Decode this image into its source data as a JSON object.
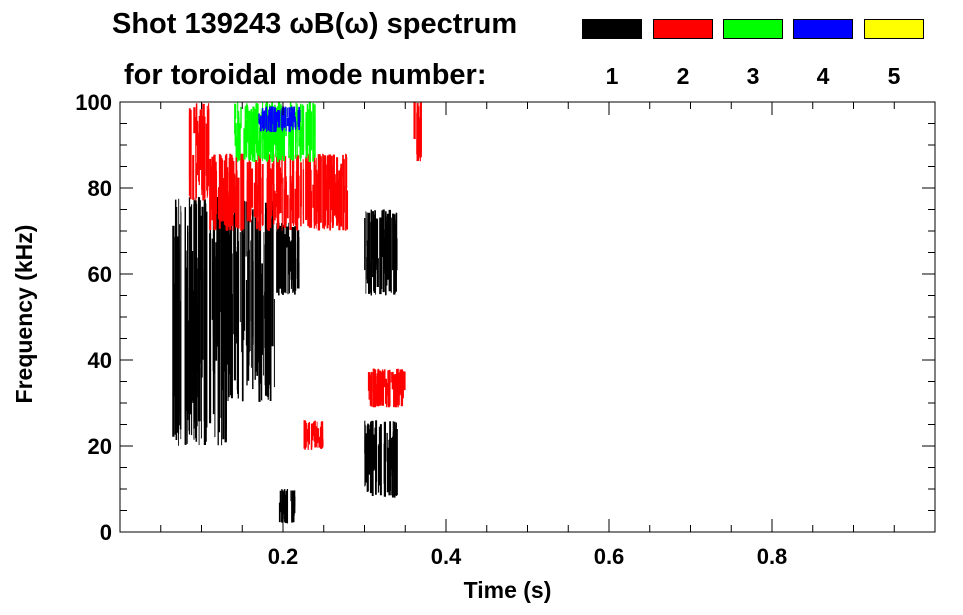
{
  "title": {
    "line1": "Shot 139243 ωB(ω) spectrum",
    "line2": "for toroidal mode number:"
  },
  "legend": [
    {
      "label": "1",
      "color": "#000000"
    },
    {
      "label": "2",
      "color": "#ff0000"
    },
    {
      "label": "3",
      "color": "#00ff00"
    },
    {
      "label": "4",
      "color": "#0000ff"
    },
    {
      "label": "5",
      "color": "#ffff00"
    }
  ],
  "chart_data": {
    "type": "heatmap",
    "xlabel": "Time (s)",
    "ylabel": "Frequency (kHz)",
    "xlim": [
      0.0,
      1.0
    ],
    "ylim": [
      0,
      100
    ],
    "xticks": [
      0.2,
      0.4,
      0.6,
      0.8
    ],
    "xtick_labels": [
      "0.2",
      "0.4",
      "0.6",
      "0.8"
    ],
    "yticks": [
      0,
      20,
      40,
      60,
      80,
      100
    ],
    "ytick_labels": [
      "0",
      "20",
      "40",
      "60",
      "80",
      "100"
    ],
    "grid": false,
    "legend_position": "top-right",
    "series": [
      {
        "name": "1",
        "color": "#000000",
        "regions": [
          {
            "t": [
              0.065,
              0.13
            ],
            "f": [
              20,
              78
            ]
          },
          {
            "t": [
              0.13,
              0.19
            ],
            "f": [
              30,
              78
            ]
          },
          {
            "t": [
              0.19,
              0.22
            ],
            "f": [
              55,
              72
            ]
          },
          {
            "t": [
              0.195,
              0.215
            ],
            "f": [
              2,
              10
            ]
          },
          {
            "t": [
              0.3,
              0.34
            ],
            "f": [
              55,
              75
            ]
          },
          {
            "t": [
              0.3,
              0.34
            ],
            "f": [
              8,
              26
            ]
          }
        ]
      },
      {
        "name": "2",
        "color": "#ff0000",
        "regions": [
          {
            "t": [
              0.085,
              0.11
            ],
            "f": [
              77,
              100
            ]
          },
          {
            "t": [
              0.11,
              0.28
            ],
            "f": [
              70,
              88
            ]
          },
          {
            "t": [
              0.225,
              0.25
            ],
            "f": [
              19,
              26
            ]
          },
          {
            "t": [
              0.305,
              0.35
            ],
            "f": [
              29,
              38
            ]
          },
          {
            "t": [
              0.36,
              0.37
            ],
            "f": [
              86,
              100
            ]
          }
        ]
      },
      {
        "name": "3",
        "color": "#00ff00",
        "regions": [
          {
            "t": [
              0.14,
              0.24
            ],
            "f": [
              86,
              100
            ]
          }
        ]
      },
      {
        "name": "4",
        "color": "#0000ff",
        "regions": [
          {
            "t": [
              0.17,
              0.22
            ],
            "f": [
              93,
              99
            ]
          }
        ]
      },
      {
        "name": "5",
        "color": "#ffff00",
        "regions": []
      }
    ]
  }
}
